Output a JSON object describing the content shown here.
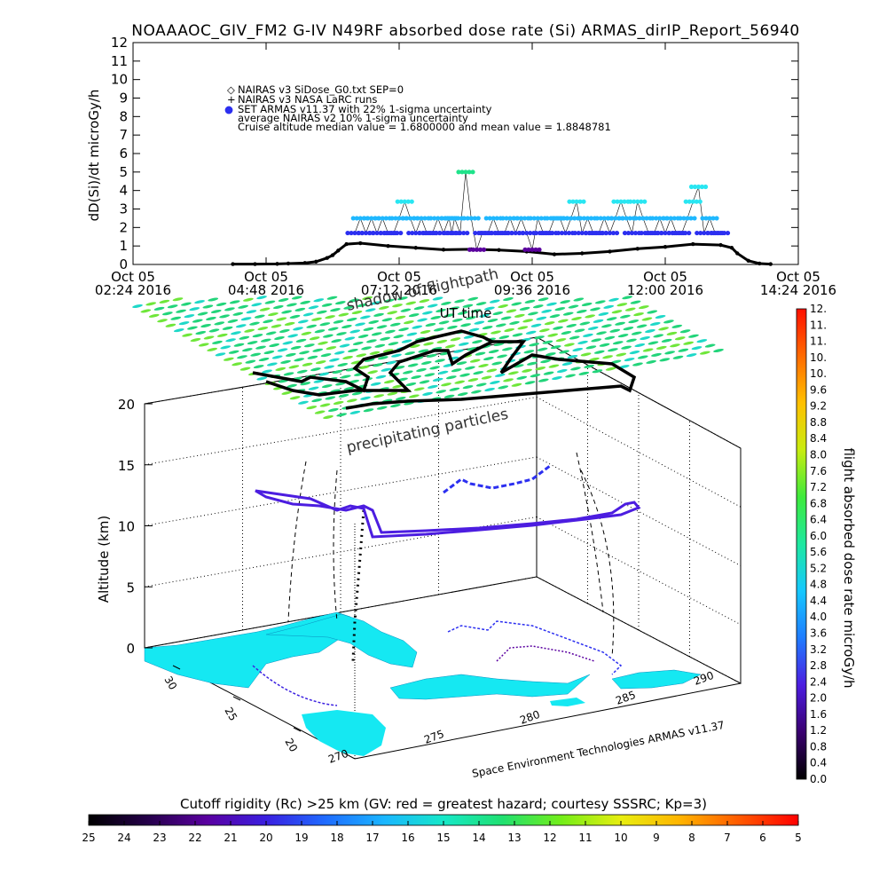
{
  "page_title": "NOAAAOC_GIV_FM2 G-IV   N49RF  absorbed dose rate (Si) ARMAS_dirIP_Report_56940",
  "colors": {
    "nairas_dose": "#000000",
    "armas_blue": "#2c2ff0",
    "armas_cyan": "#1fb8ff",
    "armas_light": "#29e6f2",
    "armas_green": "#1fe38a",
    "armas_purple": "#5b009e",
    "land": "#15e8f2",
    "mesh": "#22d47a"
  },
  "colormaps": {
    "rigidity": [
      "#000000",
      "#25004a",
      "#5a00a0",
      "#3a1fe0",
      "#1f6bff",
      "#1ab6ff",
      "#16e8c8",
      "#20e070",
      "#74ee18",
      "#e8ee10",
      "#ffb400",
      "#ff5a00",
      "#ff0000"
    ],
    "dose": [
      "#000000",
      "#3a0070",
      "#4c1de0",
      "#1f7cff",
      "#16c8ff",
      "#1ee8a0",
      "#3eea3c",
      "#c8ec10",
      "#ffc000",
      "#ff6a00",
      "#ff1000"
    ]
  },
  "chart_data": [
    {
      "type": "scatter",
      "title": "NOAAAOC_GIV_FM2 G-IV   N49RF  absorbed dose rate (Si) ARMAS_dirIP_Report_56940",
      "xlabel": "UT time",
      "ylabel": "dD(Si)/dt microGy/h",
      "ylim": [
        0,
        12
      ],
      "yticks": [
        "0",
        "1",
        "2",
        "3",
        "4",
        "5",
        "6",
        "7",
        "8",
        "9",
        "10",
        "11",
        "12"
      ],
      "xticks": [
        {
          "top": "Oct 05",
          "bottom": "02:24 2016"
        },
        {
          "top": "Oct 05",
          "bottom": "04:48 2016"
        },
        {
          "top": "Oct 05",
          "bottom": "07:12 2016"
        },
        {
          "top": "Oct 05",
          "bottom": "09:36 2016"
        },
        {
          "top": "Oct 05",
          "bottom": "12:00 2016"
        },
        {
          "top": "Oct 05",
          "bottom": "14:24 2016"
        }
      ],
      "xlim_hours": [
        2.4,
        14.4
      ],
      "legend_placement": "top-left",
      "legend": [
        {
          "symbol": "◇",
          "label": "NAIRAS v3 SiDose_G0.txt SEP=0"
        },
        {
          "symbol": "+",
          "label": "NAIRAS v3 NASA LaRC runs"
        },
        {
          "symbol": "●",
          "label": "SET ARMAS v11.37 with 22% 1-sigma uncertainty"
        },
        {
          "symbol": "",
          "label": "average NAIRAS v2 10% 1-sigma uncertainty"
        },
        {
          "symbol": "",
          "label": "Cruise altitude median value =  1.6800000 and mean value =  1.8848781"
        }
      ],
      "series": [
        {
          "name": "NAIRAS v3 SiDose_G0.txt SEP=0",
          "x_hours": [
            4.2,
            4.6,
            5.0,
            5.2,
            5.5,
            5.7,
            5.9,
            6.0,
            6.1,
            6.25,
            6.5,
            7.0,
            7.5,
            8.0,
            8.5,
            9.0,
            9.5,
            10.0,
            10.5,
            11.0,
            11.5,
            12.0,
            12.5,
            13.0,
            13.2,
            13.3,
            13.5,
            13.7,
            13.9
          ],
          "values": [
            0.02,
            0.02,
            0.03,
            0.05,
            0.08,
            0.15,
            0.35,
            0.5,
            0.75,
            1.1,
            1.15,
            1.0,
            0.9,
            0.8,
            0.82,
            0.78,
            0.7,
            0.55,
            0.6,
            0.7,
            0.85,
            0.95,
            1.1,
            1.05,
            0.9,
            0.6,
            0.2,
            0.05,
            0.02
          ]
        },
        {
          "name": "SET ARMAS v11.37",
          "x_hours": [
            6.4,
            6.5,
            6.6,
            6.7,
            6.8,
            6.9,
            7.0,
            7.1,
            7.2,
            7.3,
            7.4,
            7.5,
            7.6,
            7.7,
            7.8,
            7.9,
            8.0,
            8.1,
            8.15,
            8.2,
            8.3,
            8.4,
            8.5,
            8.6,
            8.7,
            8.8,
            8.9,
            9.0,
            9.1,
            9.2,
            9.3,
            9.4,
            9.5,
            9.6,
            9.7,
            9.8,
            9.9,
            10.0,
            10.1,
            10.2,
            10.3,
            10.4,
            10.5,
            10.6,
            10.7,
            10.8,
            10.9,
            11.0,
            11.1,
            11.2,
            11.3,
            11.4,
            11.5,
            11.6,
            11.7,
            11.8,
            11.9,
            12.0,
            12.1,
            12.2,
            12.3,
            12.4,
            12.5,
            12.6,
            12.7,
            12.8,
            12.9,
            13.0
          ],
          "values": [
            1.7,
            2.5,
            1.7,
            2.5,
            1.7,
            2.5,
            1.7,
            1.7,
            2.5,
            3.4,
            2.5,
            1.7,
            2.5,
            1.7,
            1.7,
            2.5,
            1.7,
            2.5,
            1.7,
            2.5,
            1.7,
            5.0,
            2.5,
            0.8,
            1.7,
            1.7,
            2.5,
            1.7,
            1.7,
            2.5,
            1.7,
            2.5,
            1.7,
            0.8,
            2.5,
            1.7,
            1.7,
            2.5,
            2.5,
            1.7,
            2.5,
            3.4,
            1.7,
            2.5,
            1.7,
            1.7,
            2.5,
            1.7,
            2.5,
            3.4,
            2.5,
            1.7,
            3.4,
            2.5,
            1.7,
            1.7,
            2.5,
            1.7,
            2.5,
            1.7,
            1.7,
            2.5,
            3.4,
            4.2,
            1.7,
            2.5,
            1.7,
            1.7
          ]
        }
      ]
    },
    {
      "type": "scatter3d",
      "zlabel": "Altitude (km)",
      "zlim": [
        0,
        20
      ],
      "zticks": [
        "0",
        "5",
        "10",
        "15",
        "20"
      ],
      "lat_ticks": [
        "30",
        "25",
        "20"
      ],
      "lon_ticks": [
        "270",
        "275",
        "280",
        "285",
        "290"
      ],
      "annotations": [
        "shadow of flightpath",
        "precipitating particles",
        "Space Environment Technologies ARMAS v11.37"
      ],
      "vertical_colorbar": {
        "label": "flight absorbed dose rate microGy/h",
        "ticks": [
          "0.0",
          "0.4",
          "0.8",
          "1.2",
          "1.6",
          "2.0",
          "2.4",
          "2.8",
          "3.2",
          "3.6",
          "4.0",
          "4.4",
          "4.8",
          "5.2",
          "5.6",
          "6.0",
          "6.4",
          "6.8",
          "7.2",
          "7.6",
          "8.0",
          "8.4",
          "8.8",
          "9.2",
          "9.6",
          "10.",
          "10.",
          "11.",
          "11.",
          "12."
        ]
      }
    },
    {
      "type": "colorbar",
      "title": "Cutoff rigidity (Rc) >25 km (GV: red = greatest hazard; courtesy SSSRC; Kp=3)",
      "ticks": [
        "25",
        "24",
        "23",
        "22",
        "21",
        "20",
        "19",
        "18",
        "17",
        "16",
        "15",
        "14",
        "13",
        "12",
        "11",
        "10",
        "9",
        "8",
        "7",
        "6",
        "5"
      ]
    }
  ]
}
